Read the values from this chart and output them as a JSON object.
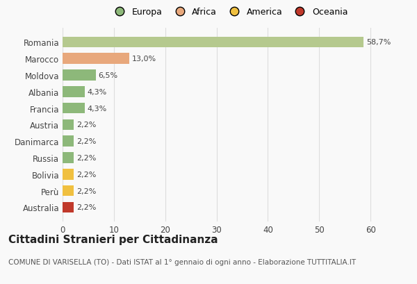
{
  "categories": [
    "Australia",
    "Perù",
    "Bolivia",
    "Russia",
    "Danimarca",
    "Austria",
    "Francia",
    "Albania",
    "Moldova",
    "Marocco",
    "Romania"
  ],
  "values": [
    2.2,
    2.2,
    2.2,
    2.2,
    2.2,
    2.2,
    4.3,
    4.3,
    6.5,
    13.0,
    58.7
  ],
  "colors": [
    "#c0392b",
    "#f0c040",
    "#f0c040",
    "#8db87a",
    "#8db87a",
    "#8db87a",
    "#8db87a",
    "#8db87a",
    "#8db87a",
    "#e8a87c",
    "#b5c98e"
  ],
  "labels": [
    "2,2%",
    "2,2%",
    "2,2%",
    "2,2%",
    "2,2%",
    "2,2%",
    "4,3%",
    "4,3%",
    "6,5%",
    "13,0%",
    "58,7%"
  ],
  "legend_labels": [
    "Europa",
    "Africa",
    "America",
    "Oceania"
  ],
  "legend_colors": [
    "#8db87a",
    "#e8a87c",
    "#f0c040",
    "#c0392b"
  ],
  "title": "Cittadini Stranieri per Cittadinanza",
  "subtitle": "COMUNE DI VARISELLA (TO) - Dati ISTAT al 1° gennaio di ogni anno - Elaborazione TUTTITALIA.IT",
  "xlim": [
    0,
    65
  ],
  "xticks": [
    0,
    10,
    20,
    30,
    40,
    50,
    60
  ],
  "background_color": "#f9f9f9",
  "grid_color": "#dddddd",
  "title_fontsize": 11,
  "subtitle_fontsize": 7.5,
  "label_fontsize": 8,
  "tick_fontsize": 8.5,
  "legend_fontsize": 9
}
